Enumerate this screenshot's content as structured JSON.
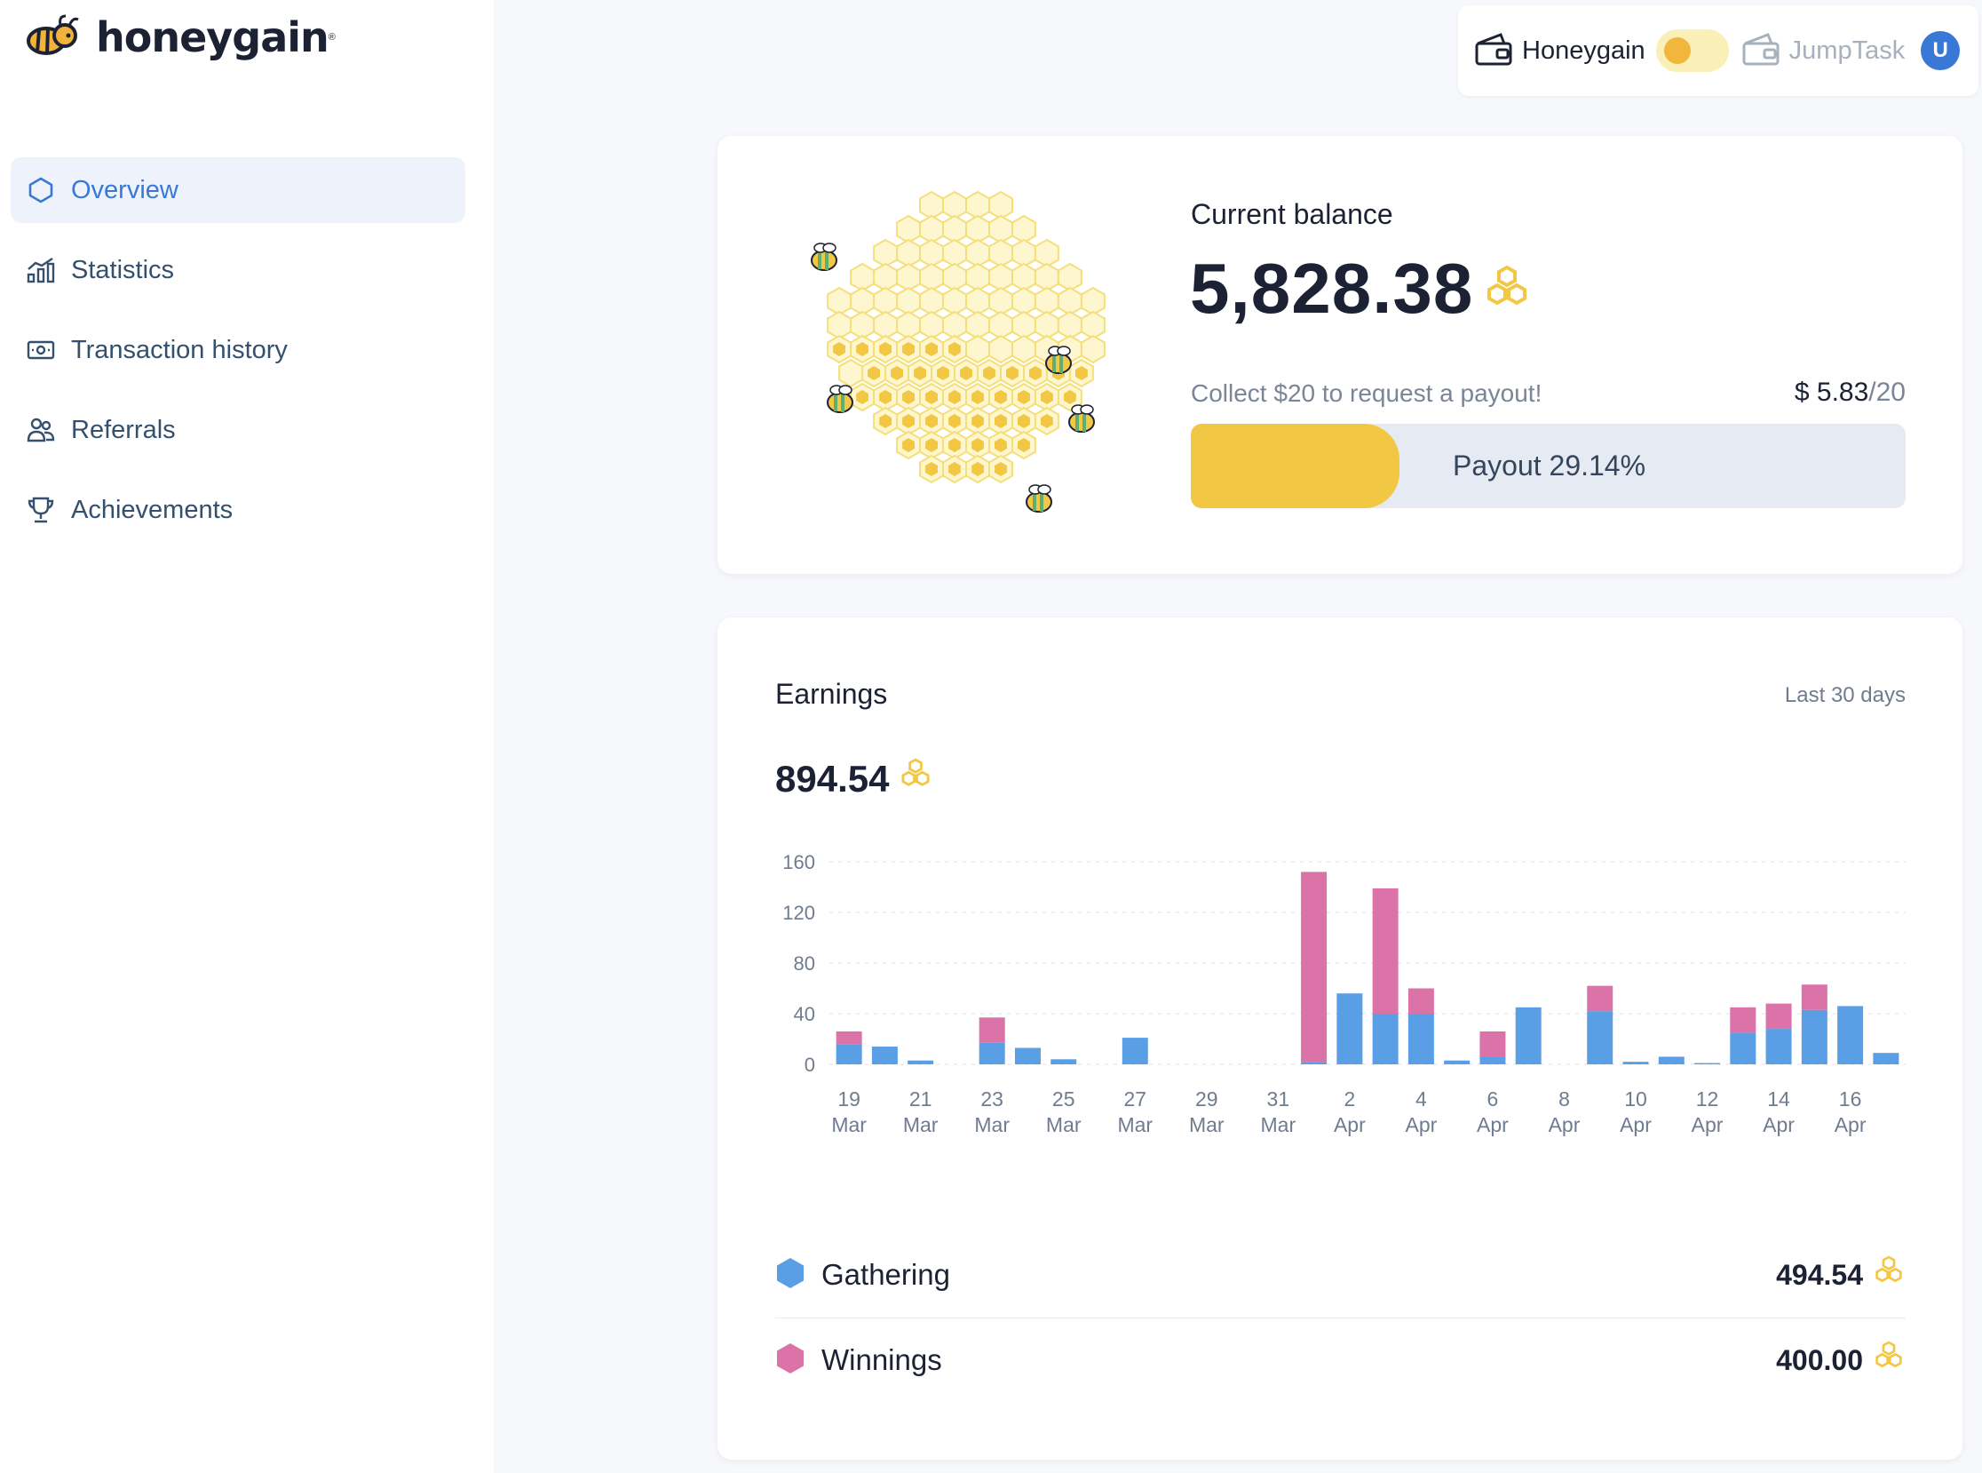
{
  "brand": {
    "name": "honeygain",
    "reg_mark": "®"
  },
  "nav": {
    "items": [
      {
        "label": "Overview",
        "icon": "hexagon-icon",
        "active": true
      },
      {
        "label": "Statistics",
        "icon": "chart-icon",
        "active": false
      },
      {
        "label": "Transaction history",
        "icon": "banknote-icon",
        "active": false
      },
      {
        "label": "Referrals",
        "icon": "users-icon",
        "active": false
      },
      {
        "label": "Achievements",
        "icon": "trophy-icon",
        "active": false
      }
    ]
  },
  "topbar": {
    "left_label": "Honeygain",
    "right_label": "JumpTask",
    "toggle_state": "Honeygain",
    "avatar_letter": "U"
  },
  "balance": {
    "title": "Current balance",
    "value": "5,828.38",
    "collect_text": "Collect $20 to request a payout!",
    "current_amount": "$ 5.83",
    "goal_amount": "/20",
    "payout_label": "Payout 29.14%",
    "payout_percent": 29.14
  },
  "earnings": {
    "title": "Earnings",
    "range": "Last 30 days",
    "total": "894.54",
    "legend": [
      {
        "name": "Gathering",
        "value": "494.54",
        "color": "#5a9ee6"
      },
      {
        "name": "Winnings",
        "value": "400.00",
        "color": "#db72a8"
      }
    ]
  },
  "colors": {
    "accent": "#3a78d6",
    "honey": "#f2c744",
    "gathering": "#5a9ee6",
    "winnings": "#db72a8"
  },
  "chart_data": {
    "type": "bar",
    "stacked": true,
    "y_ticks": [
      "0",
      "40",
      "80",
      "120",
      "160"
    ],
    "ylim": [
      0,
      160
    ],
    "grid": true,
    "x_tick_labels": [
      [
        "19",
        "Mar"
      ],
      [
        "21",
        "Mar"
      ],
      [
        "23",
        "Mar"
      ],
      [
        "25",
        "Mar"
      ],
      [
        "27",
        "Mar"
      ],
      [
        "29",
        "Mar"
      ],
      [
        "31",
        "Mar"
      ],
      [
        "2",
        "Apr"
      ],
      [
        "4",
        "Apr"
      ],
      [
        "6",
        "Apr"
      ],
      [
        "8",
        "Apr"
      ],
      [
        "10",
        "Apr"
      ],
      [
        "12",
        "Apr"
      ],
      [
        "14",
        "Apr"
      ],
      [
        "16",
        "Apr"
      ]
    ],
    "categories": [
      "19 Mar",
      "20 Mar",
      "21 Mar",
      "22 Mar",
      "23 Mar",
      "24 Mar",
      "25 Mar",
      "26 Mar",
      "27 Mar",
      "28 Mar",
      "29 Mar",
      "30 Mar",
      "31 Mar",
      "1 Apr",
      "2 Apr",
      "3 Apr",
      "4 Apr",
      "5 Apr",
      "6 Apr",
      "7 Apr",
      "8 Apr",
      "9 Apr",
      "10 Apr",
      "11 Apr",
      "12 Apr",
      "13 Apr",
      "14 Apr",
      "15 Apr",
      "16 Apr",
      "17 Apr"
    ],
    "series": [
      {
        "name": "Gathering",
        "values": [
          16,
          14,
          3,
          0,
          17,
          13,
          4,
          0,
          21,
          0,
          0,
          0,
          0,
          2,
          56,
          40,
          40,
          3,
          6,
          45,
          0,
          42,
          2,
          6,
          1,
          25,
          28,
          43,
          46,
          9
        ]
      },
      {
        "name": "Winnings",
        "values": [
          10,
          0,
          0,
          0,
          20,
          0,
          0,
          0,
          0,
          0,
          0,
          0,
          0,
          150,
          0,
          99,
          20,
          0,
          20,
          0,
          0,
          20,
          0,
          0,
          0,
          20,
          20,
          20,
          0,
          0
        ]
      }
    ]
  }
}
